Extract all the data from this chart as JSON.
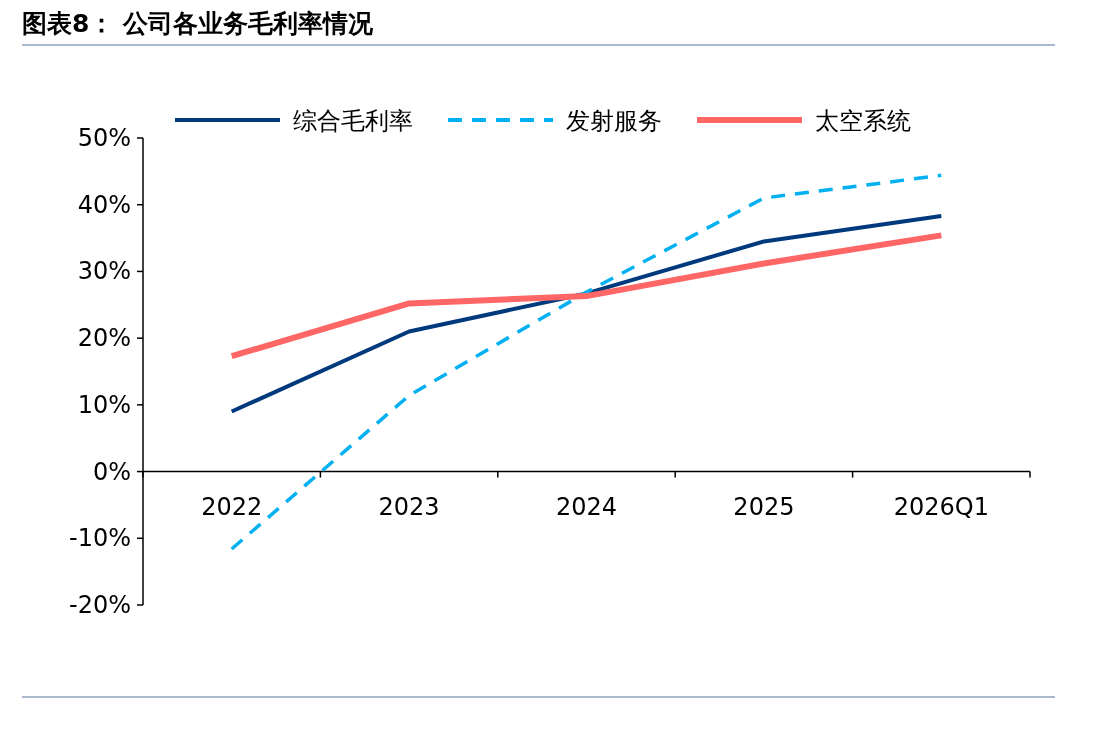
{
  "chart_data": {
    "type": "line",
    "title": "图表8： 公司各业务毛利率情况",
    "categories": [
      "2022",
      "2023",
      "2024",
      "2025",
      "2026Q1"
    ],
    "series": [
      {
        "name": "综合毛利率",
        "color": "#003a7d",
        "line_style": "solid",
        "values": [
          9.0,
          21.0,
          26.7,
          34.5,
          38.3
        ]
      },
      {
        "name": "发射服务",
        "color": "#00b0f0",
        "line_style": "dashed",
        "values": [
          -11.6,
          11.4,
          26.9,
          41.0,
          44.4
        ]
      },
      {
        "name": "太空系统",
        "color": "#ff6666",
        "line_style": "solid",
        "values": [
          17.3,
          25.2,
          26.3,
          31.2,
          35.4
        ]
      }
    ],
    "ylim": [
      -20,
      50
    ],
    "yticks": [
      {
        "value": -20,
        "label": "-20%"
      },
      {
        "value": -10,
        "label": "-10%"
      },
      {
        "value": 0,
        "label": "0%"
      },
      {
        "value": 10,
        "label": "10%"
      },
      {
        "value": 20,
        "label": "20%"
      },
      {
        "value": 30,
        "label": "30%"
      },
      {
        "value": 40,
        "label": "40%"
      },
      {
        "value": 50,
        "label": "50%"
      }
    ],
    "grid": false,
    "legend": "top"
  }
}
